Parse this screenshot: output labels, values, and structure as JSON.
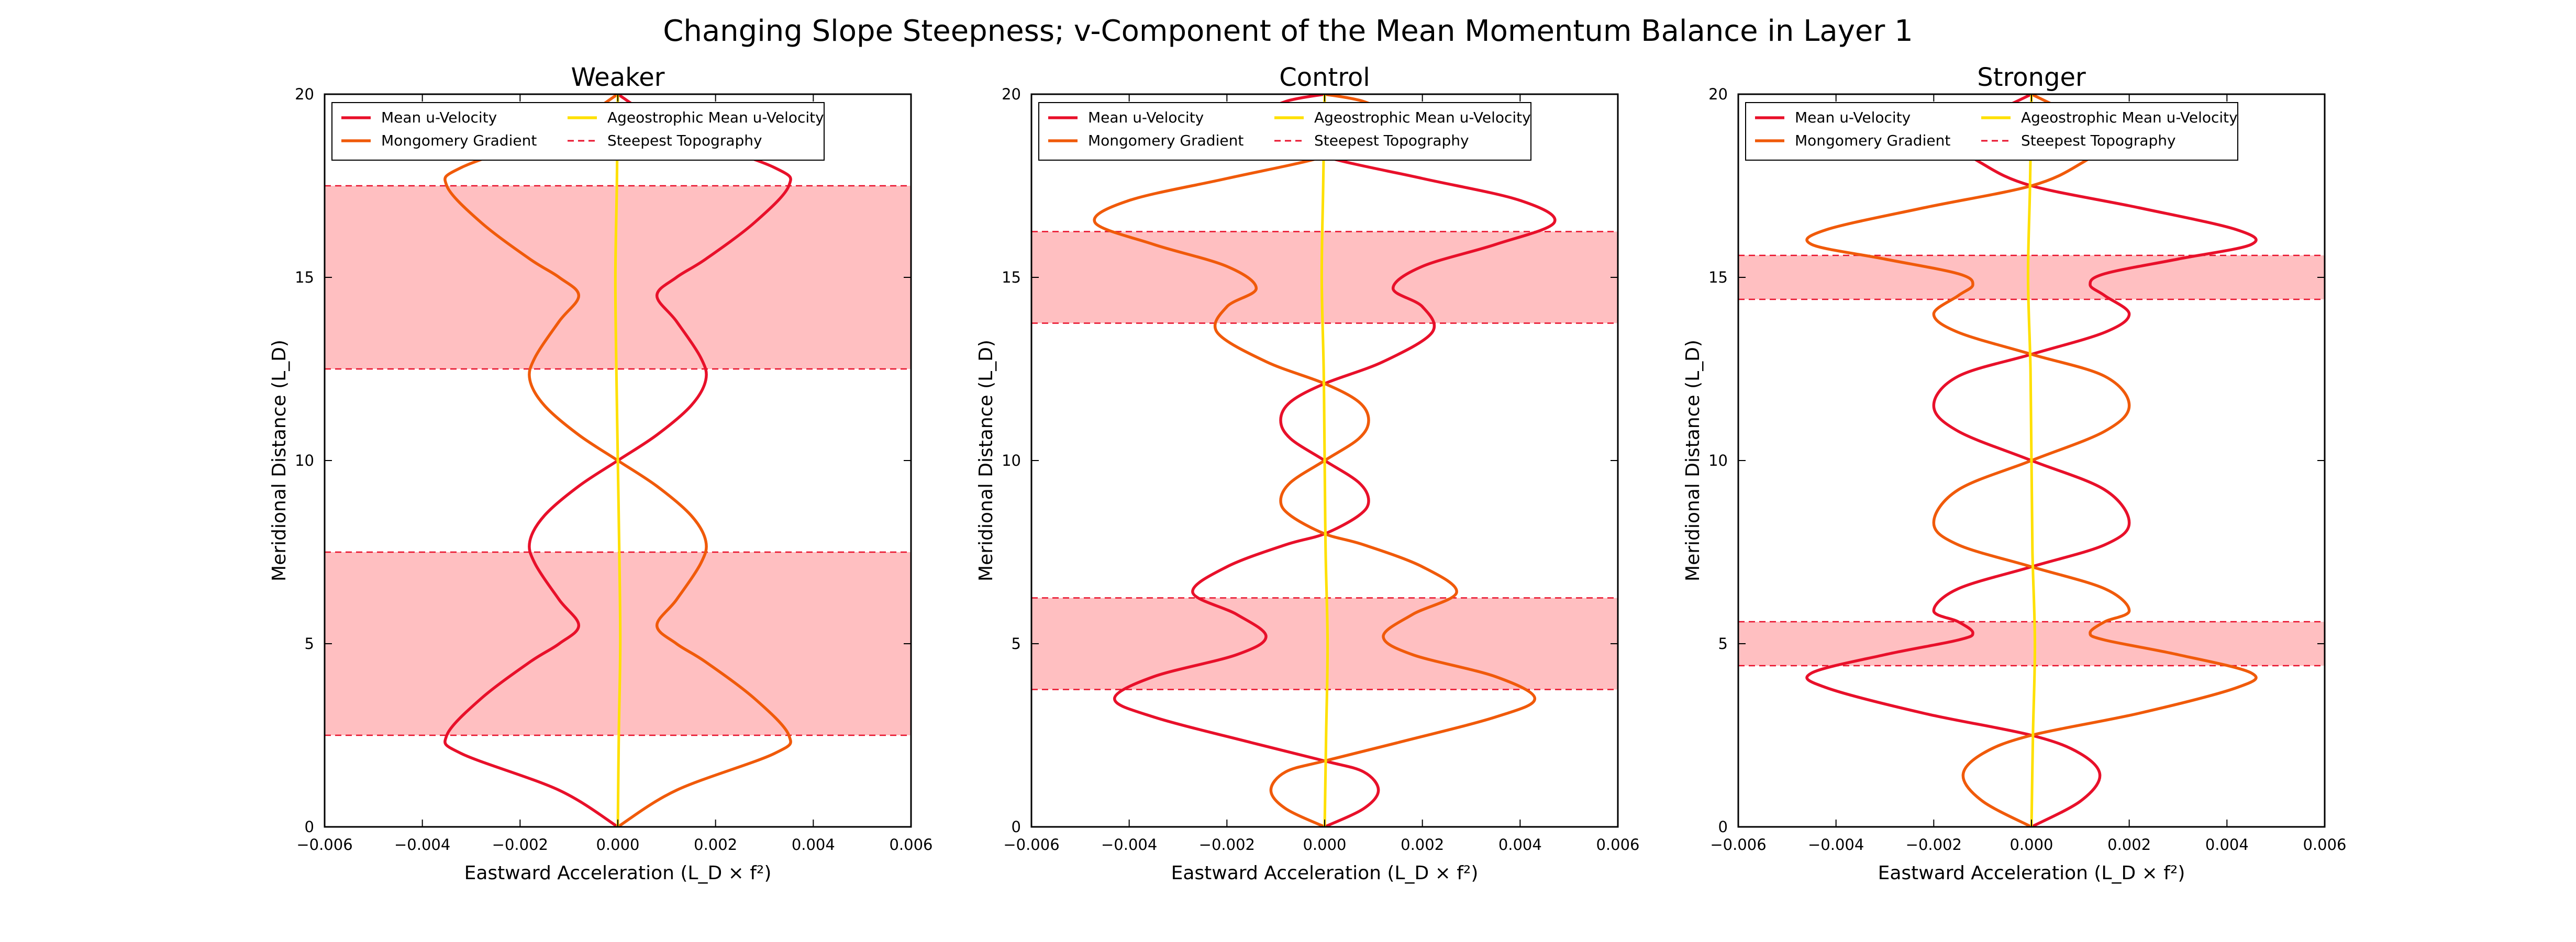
{
  "suptitle": "Changing Slope Steepness; v-Component of the Mean Momentum Balance in Layer 1",
  "colors": {
    "mean_velocity": "#e8102a",
    "montgomery_gradient": "#f05a0a",
    "ageostrophic": "#ffe000",
    "topography_line": "#e8102a",
    "topography_fill": "#ffbfc1"
  },
  "chart_data": [
    {
      "type": "line",
      "title": "Weaker",
      "xlabel": "Eastward Acceleration (L_D × f²)",
      "ylabel": "Meridional Distance (L_D)",
      "xlim": [
        -0.006,
        0.006
      ],
      "ylim": [
        0,
        20
      ],
      "xticks": [
        "−0.006",
        "−0.004",
        "−0.002",
        "0.000",
        "0.002",
        "0.004",
        "0.006"
      ],
      "yticks": [
        "0",
        "5",
        "10",
        "15",
        "20"
      ],
      "steepest_topography": [
        [
          2.5,
          7.5
        ],
        [
          12.5,
          17.5
        ]
      ],
      "legend": {
        "position": "top",
        "entries": [
          "Mean u-Velocity",
          "Mongomery Gradient",
          "Ageostrophic Mean u-Velocity",
          "Steepest Topography"
        ]
      },
      "series": [
        {
          "name": "Mean u-Velocity",
          "points": [
            [
              0.0,
              0
            ],
            [
              -0.0012,
              1.0
            ],
            [
              -0.0032,
              2.0
            ],
            [
              -0.0035,
              2.5
            ],
            [
              -0.0028,
              3.5
            ],
            [
              -0.0018,
              4.5
            ],
            [
              -0.0012,
              5.0
            ],
            [
              -0.0008,
              5.5
            ],
            [
              -0.0012,
              6.2
            ],
            [
              -0.0017,
              7.2
            ],
            [
              -0.0018,
              7.8
            ],
            [
              -0.0015,
              8.5
            ],
            [
              -0.0008,
              9.3
            ],
            [
              0.0,
              10.0
            ],
            [
              0.0008,
              10.7
            ],
            [
              0.0015,
              11.5
            ],
            [
              0.0018,
              12.2
            ],
            [
              0.0017,
              12.8
            ],
            [
              0.0012,
              13.8
            ],
            [
              0.0008,
              14.5
            ],
            [
              0.0012,
              15.0
            ],
            [
              0.0018,
              15.5
            ],
            [
              0.0028,
              16.5
            ],
            [
              0.0035,
              17.5
            ],
            [
              0.0032,
              18.0
            ],
            [
              0.0012,
              19.0
            ],
            [
              0.0,
              20.0
            ]
          ]
        },
        {
          "name": "Mongomery Gradient",
          "points": [
            [
              0.0,
              0
            ],
            [
              0.0012,
              1.0
            ],
            [
              0.0032,
              2.0
            ],
            [
              0.0035,
              2.5
            ],
            [
              0.0028,
              3.5
            ],
            [
              0.0018,
              4.5
            ],
            [
              0.0012,
              5.0
            ],
            [
              0.0008,
              5.5
            ],
            [
              0.0012,
              6.2
            ],
            [
              0.0017,
              7.2
            ],
            [
              0.0018,
              7.8
            ],
            [
              0.0015,
              8.5
            ],
            [
              0.0008,
              9.3
            ],
            [
              0.0,
              10.0
            ],
            [
              -0.0008,
              10.7
            ],
            [
              -0.0015,
              11.5
            ],
            [
              -0.0018,
              12.2
            ],
            [
              -0.0017,
              12.8
            ],
            [
              -0.0012,
              13.8
            ],
            [
              -0.0008,
              14.5
            ],
            [
              -0.0012,
              15.0
            ],
            [
              -0.0018,
              15.5
            ],
            [
              -0.0028,
              16.5
            ],
            [
              -0.0035,
              17.5
            ],
            [
              -0.0032,
              18.0
            ],
            [
              -0.0012,
              19.0
            ],
            [
              0.0,
              20.0
            ]
          ]
        },
        {
          "name": "Ageostrophic Mean u-Velocity",
          "points": [
            [
              0.0,
              0
            ],
            [
              2e-05,
              2.5
            ],
            [
              5e-05,
              5.0
            ],
            [
              3e-05,
              7.5
            ],
            [
              0.0,
              10.0
            ],
            [
              -3e-05,
              12.5
            ],
            [
              -5e-05,
              15.0
            ],
            [
              -2e-05,
              17.5
            ],
            [
              0.0,
              20.0
            ]
          ]
        }
      ]
    },
    {
      "type": "line",
      "title": "Control",
      "xlabel": "Eastward Acceleration (L_D × f²)",
      "ylabel": "Meridional Distance (L_D)",
      "xlim": [
        -0.006,
        0.006
      ],
      "ylim": [
        0,
        20
      ],
      "xticks": [
        "−0.006",
        "−0.004",
        "−0.002",
        "0.000",
        "0.002",
        "0.004",
        "0.006"
      ],
      "yticks": [
        "0",
        "5",
        "10",
        "15",
        "20"
      ],
      "steepest_topography": [
        [
          3.75,
          6.25
        ],
        [
          13.75,
          16.25
        ]
      ],
      "legend": {
        "position": "top",
        "entries": [
          "Mean u-Velocity",
          "Mongomery Gradient",
          "Ageostrophic Mean u-Velocity",
          "Steepest Topography"
        ]
      },
      "series": [
        {
          "name": "Mean u-Velocity",
          "points": [
            [
              0.0,
              0
            ],
            [
              0.0008,
              0.5
            ],
            [
              0.0011,
              1.0
            ],
            [
              0.0008,
              1.5
            ],
            [
              0.0,
              1.8
            ],
            [
              -0.0015,
              2.3
            ],
            [
              -0.0035,
              3.0
            ],
            [
              -0.0043,
              3.5
            ],
            [
              -0.0035,
              4.1
            ],
            [
              -0.0018,
              4.7
            ],
            [
              -0.0012,
              5.2
            ],
            [
              -0.0018,
              5.8
            ],
            [
              -0.0027,
              6.4
            ],
            [
              -0.002,
              7.1
            ],
            [
              -0.0008,
              7.7
            ],
            [
              0.0,
              8.0
            ],
            [
              0.0007,
              8.5
            ],
            [
              0.0009,
              8.9
            ],
            [
              0.0007,
              9.4
            ],
            [
              0.0,
              10.0
            ],
            [
              -0.0007,
              10.6
            ],
            [
              -0.0009,
              11.1
            ],
            [
              -0.0007,
              11.6
            ],
            [
              0.0,
              12.1
            ],
            [
              0.0012,
              12.7
            ],
            [
              0.0022,
              13.5
            ],
            [
              0.002,
              14.2
            ],
            [
              0.0014,
              14.7
            ],
            [
              0.002,
              15.3
            ],
            [
              0.0035,
              15.9
            ],
            [
              0.0047,
              16.5
            ],
            [
              0.004,
              17.1
            ],
            [
              0.002,
              17.7
            ],
            [
              0.0,
              18.3
            ],
            [
              -0.001,
              18.9
            ],
            [
              -0.0013,
              19.4
            ],
            [
              -0.0008,
              19.8
            ],
            [
              0.0,
              20.0
            ]
          ]
        },
        {
          "name": "Mongomery Gradient",
          "points": [
            [
              0.0,
              0
            ],
            [
              -0.0008,
              0.5
            ],
            [
              -0.0011,
              1.0
            ],
            [
              -0.0008,
              1.5
            ],
            [
              0.0,
              1.8
            ],
            [
              0.0015,
              2.3
            ],
            [
              0.0035,
              3.0
            ],
            [
              0.0043,
              3.5
            ],
            [
              0.0035,
              4.1
            ],
            [
              0.0018,
              4.7
            ],
            [
              0.0012,
              5.2
            ],
            [
              0.0018,
              5.8
            ],
            [
              0.0027,
              6.4
            ],
            [
              0.002,
              7.1
            ],
            [
              0.0008,
              7.7
            ],
            [
              0.0,
              8.0
            ],
            [
              -0.0007,
              8.5
            ],
            [
              -0.0009,
              8.9
            ],
            [
              -0.0007,
              9.4
            ],
            [
              0.0,
              10.0
            ],
            [
              0.0007,
              10.6
            ],
            [
              0.0009,
              11.1
            ],
            [
              0.0007,
              11.6
            ],
            [
              0.0,
              12.1
            ],
            [
              -0.0012,
              12.7
            ],
            [
              -0.0022,
              13.5
            ],
            [
              -0.002,
              14.2
            ],
            [
              -0.0014,
              14.7
            ],
            [
              -0.002,
              15.3
            ],
            [
              -0.0035,
              15.9
            ],
            [
              -0.0047,
              16.5
            ],
            [
              -0.004,
              17.1
            ],
            [
              -0.002,
              17.7
            ],
            [
              0.0,
              18.3
            ],
            [
              0.001,
              18.9
            ],
            [
              0.0013,
              19.4
            ],
            [
              0.0008,
              19.8
            ],
            [
              0.0,
              20.0
            ]
          ]
        },
        {
          "name": "Ageostrophic Mean u-Velocity",
          "points": [
            [
              0.0,
              0
            ],
            [
              3e-05,
              2.5
            ],
            [
              6e-05,
              5.0
            ],
            [
              2e-05,
              7.5
            ],
            [
              0.0,
              10.0
            ],
            [
              -2e-05,
              12.5
            ],
            [
              -6e-05,
              15.0
            ],
            [
              -3e-05,
              17.5
            ],
            [
              0.0,
              20.0
            ]
          ]
        }
      ]
    },
    {
      "type": "line",
      "title": "Stronger",
      "xlabel": "Eastward Acceleration (L_D × f²)",
      "ylabel": "Meridional Distance (L_D)",
      "xlim": [
        -0.006,
        0.006
      ],
      "ylim": [
        0,
        20
      ],
      "xticks": [
        "−0.006",
        "−0.004",
        "−0.002",
        "0.000",
        "0.002",
        "0.004",
        "0.006"
      ],
      "yticks": [
        "0",
        "5",
        "10",
        "15",
        "20"
      ],
      "steepest_topography": [
        [
          4.4,
          5.6
        ],
        [
          14.4,
          15.6
        ]
      ],
      "legend": {
        "position": "top",
        "entries": [
          "Mean u-Velocity",
          "Mongomery Gradient",
          "Ageostrophic Mean u-Velocity",
          "Steepest Topography"
        ]
      },
      "series": [
        {
          "name": "Mean u-Velocity",
          "points": [
            [
              0.0,
              0
            ],
            [
              0.001,
              0.7
            ],
            [
              0.0014,
              1.4
            ],
            [
              0.001,
              2.0
            ],
            [
              0.0,
              2.5
            ],
            [
              -0.0022,
              3.1
            ],
            [
              -0.0042,
              3.8
            ],
            [
              -0.0045,
              4.2
            ],
            [
              -0.003,
              4.7
            ],
            [
              -0.0015,
              5.1
            ],
            [
              -0.0012,
              5.3
            ],
            [
              -0.0015,
              5.6
            ],
            [
              -0.002,
              5.9
            ],
            [
              -0.0015,
              6.5
            ],
            [
              0.0,
              7.1
            ],
            [
              0.0015,
              7.7
            ],
            [
              0.002,
              8.3
            ],
            [
              0.0015,
              9.2
            ],
            [
              0.0,
              10.0
            ],
            [
              -0.0015,
              10.8
            ],
            [
              -0.002,
              11.5
            ],
            [
              -0.0015,
              12.3
            ],
            [
              0.0,
              12.9
            ],
            [
              0.0015,
              13.5
            ],
            [
              0.002,
              14.0
            ],
            [
              0.0015,
              14.5
            ],
            [
              0.0012,
              14.8
            ],
            [
              0.0015,
              15.1
            ],
            [
              0.003,
              15.5
            ],
            [
              0.0045,
              15.9
            ],
            [
              0.0042,
              16.3
            ],
            [
              0.0022,
              16.9
            ],
            [
              0.0,
              17.5
            ],
            [
              -0.001,
              18.1
            ],
            [
              -0.0014,
              18.6
            ],
            [
              -0.001,
              19.3
            ],
            [
              0.0,
              20.0
            ]
          ]
        },
        {
          "name": "Mongomery Gradient",
          "points": [
            [
              0.0,
              0
            ],
            [
              -0.001,
              0.7
            ],
            [
              -0.0014,
              1.4
            ],
            [
              -0.001,
              2.0
            ],
            [
              0.0,
              2.5
            ],
            [
              0.0022,
              3.1
            ],
            [
              0.0042,
              3.8
            ],
            [
              0.0045,
              4.2
            ],
            [
              0.003,
              4.7
            ],
            [
              0.0015,
              5.1
            ],
            [
              0.0012,
              5.3
            ],
            [
              0.0015,
              5.6
            ],
            [
              0.002,
              5.9
            ],
            [
              0.0015,
              6.5
            ],
            [
              0.0,
              7.1
            ],
            [
              -0.0015,
              7.7
            ],
            [
              -0.002,
              8.3
            ],
            [
              -0.0015,
              9.2
            ],
            [
              0.0,
              10.0
            ],
            [
              0.0015,
              10.8
            ],
            [
              0.002,
              11.5
            ],
            [
              0.0015,
              12.3
            ],
            [
              0.0,
              12.9
            ],
            [
              -0.0015,
              13.5
            ],
            [
              -0.002,
              14.0
            ],
            [
              -0.0015,
              14.5
            ],
            [
              -0.0012,
              14.8
            ],
            [
              -0.0015,
              15.1
            ],
            [
              -0.003,
              15.5
            ],
            [
              -0.0045,
              15.9
            ],
            [
              -0.0042,
              16.3
            ],
            [
              -0.0022,
              16.9
            ],
            [
              0.0,
              17.5
            ],
            [
              0.001,
              18.1
            ],
            [
              0.0014,
              18.6
            ],
            [
              0.001,
              19.3
            ],
            [
              0.0,
              20.0
            ]
          ]
        },
        {
          "name": "Ageostrophic Mean u-Velocity",
          "points": [
            [
              0.0,
              0
            ],
            [
              3e-05,
              2.5
            ],
            [
              7e-05,
              5.0
            ],
            [
              2e-05,
              7.5
            ],
            [
              0.0,
              10.0
            ],
            [
              -2e-05,
              12.5
            ],
            [
              -7e-05,
              15.0
            ],
            [
              -3e-05,
              17.5
            ],
            [
              0.0,
              20.0
            ]
          ]
        }
      ]
    }
  ]
}
